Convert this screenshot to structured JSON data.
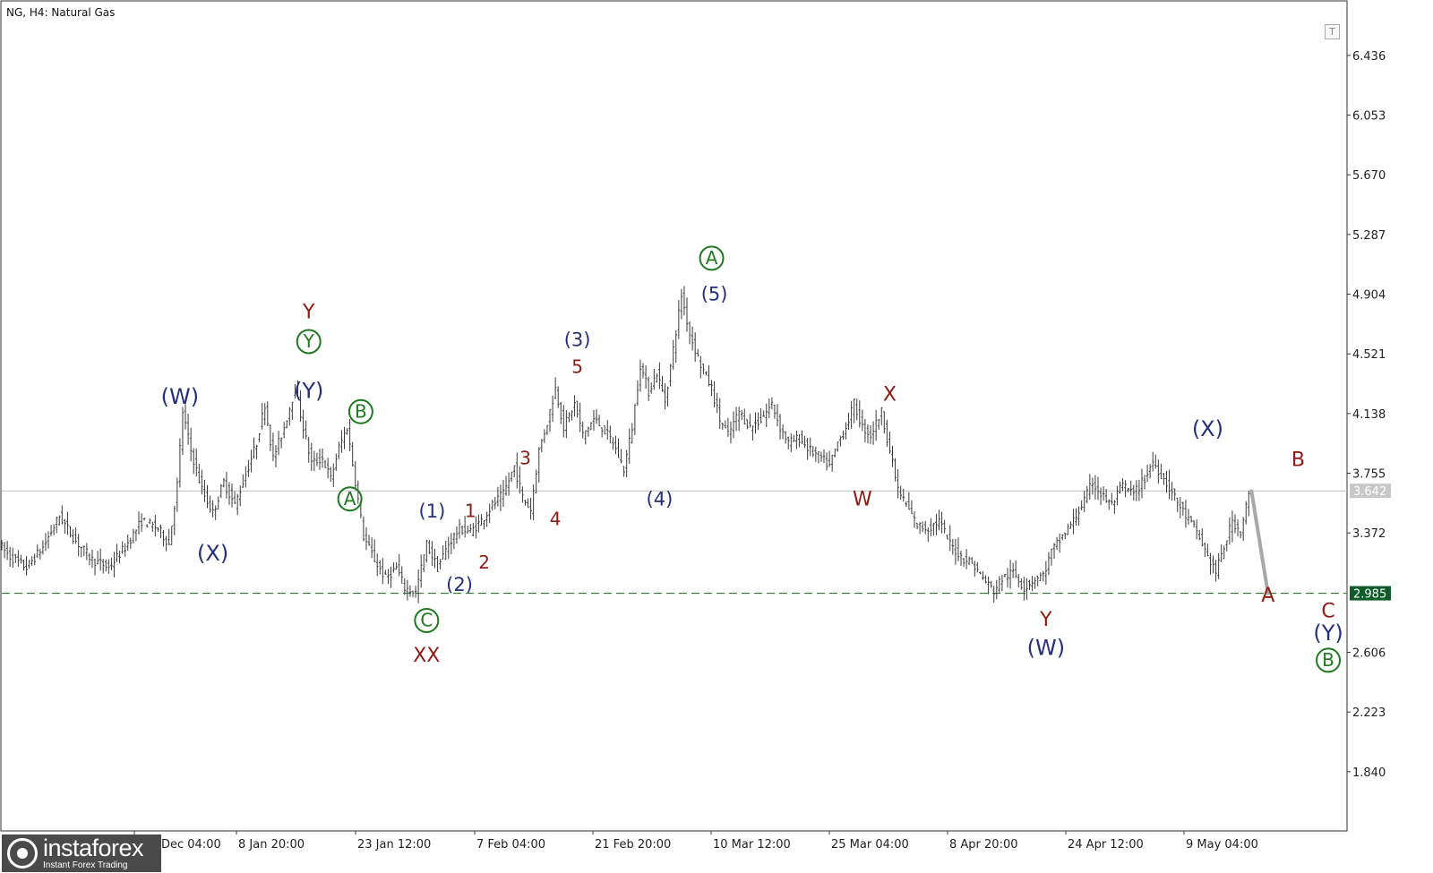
{
  "header": {
    "title": "NG, H4:  Natural Gas"
  },
  "toolbar": {
    "button_label": "T"
  },
  "logo": {
    "name": "instaforex",
    "tagline": "Instant Forex Trading"
  },
  "colors": {
    "bars": "#3a3a3a",
    "navy_labels": "#24307a",
    "red_labels": "#8e1b14",
    "green_labels": "#1f7a1f",
    "support_line": "#2e7d32",
    "current_price_line": "#bdbdbd",
    "price_box_green": "#0d5c2a",
    "price_box_grey": "#c8c8c8"
  },
  "chart_data": {
    "type": "ohlc",
    "symbol": "NG",
    "timeframe": "H4",
    "instrument": "Natural Gas",
    "ylim": [
      1.46,
      6.78
    ],
    "yticks": [
      "6.436",
      "6.053",
      "5.670",
      "5.287",
      "4.904",
      "4.521",
      "4.138",
      "3.755",
      "3.372",
      "2.606",
      "2.223",
      "1.840"
    ],
    "xticks": [
      "Dec 04:00",
      "8 Jan 20:00",
      "23 Jan 12:00",
      "7 Feb 04:00",
      "21 Feb 20:00",
      "10 Mar 12:00",
      "25 Mar 04:00",
      "8 Apr 20:00",
      "24 Apr 12:00",
      "9 May 04:00"
    ],
    "current_price": "3.642",
    "support_level": "2.985",
    "support_value": 2.985,
    "current_value": 3.642,
    "price_path": [
      [
        0,
        3.3
      ],
      [
        4,
        3.22
      ],
      [
        10,
        3.15
      ],
      [
        16,
        3.28
      ],
      [
        22,
        3.48
      ],
      [
        28,
        3.32
      ],
      [
        34,
        3.2
      ],
      [
        40,
        3.15
      ],
      [
        46,
        3.28
      ],
      [
        52,
        3.45
      ],
      [
        58,
        3.4
      ],
      [
        62,
        3.3
      ],
      [
        65,
        3.68
      ],
      [
        67,
        4.15
      ],
      [
        70,
        3.9
      ],
      [
        74,
        3.65
      ],
      [
        78,
        3.5
      ],
      [
        82,
        3.7
      ],
      [
        86,
        3.55
      ],
      [
        90,
        3.75
      ],
      [
        94,
        3.95
      ],
      [
        97,
        4.2
      ],
      [
        100,
        3.85
      ],
      [
        104,
        4.05
      ],
      [
        108,
        4.3
      ],
      [
        111,
        4.05
      ],
      [
        114,
        3.82
      ],
      [
        118,
        3.85
      ],
      [
        121,
        3.72
      ],
      [
        124,
        3.92
      ],
      [
        127,
        4.05
      ],
      [
        130,
        3.7
      ],
      [
        133,
        3.35
      ],
      [
        137,
        3.2
      ],
      [
        141,
        3.08
      ],
      [
        145,
        3.15
      ],
      [
        148,
        3.02
      ],
      [
        152,
        2.99
      ],
      [
        156,
        3.3
      ],
      [
        160,
        3.15
      ],
      [
        164,
        3.3
      ],
      [
        168,
        3.4
      ],
      [
        172,
        3.38
      ],
      [
        176,
        3.45
      ],
      [
        180,
        3.55
      ],
      [
        184,
        3.62
      ],
      [
        188,
        3.8
      ],
      [
        191,
        3.6
      ],
      [
        194,
        3.52
      ],
      [
        197,
        3.9
      ],
      [
        200,
        4.08
      ],
      [
        203,
        4.3
      ],
      [
        206,
        4.05
      ],
      [
        210,
        4.2
      ],
      [
        213,
        4.0
      ],
      [
        217,
        4.1
      ],
      [
        220,
        4.05
      ],
      [
        224,
        3.95
      ],
      [
        228,
        3.78
      ],
      [
        231,
        4.05
      ],
      [
        234,
        4.45
      ],
      [
        237,
        4.28
      ],
      [
        240,
        4.4
      ],
      [
        243,
        4.22
      ],
      [
        246,
        4.55
      ],
      [
        249,
        4.9
      ],
      [
        252,
        4.65
      ],
      [
        256,
        4.45
      ],
      [
        260,
        4.3
      ],
      [
        263,
        4.1
      ],
      [
        266,
        4.0
      ],
      [
        270,
        4.15
      ],
      [
        274,
        4.05
      ],
      [
        278,
        4.1
      ],
      [
        282,
        4.2
      ],
      [
        285,
        4.05
      ],
      [
        288,
        3.95
      ],
      [
        292,
        3.98
      ],
      [
        296,
        3.9
      ],
      [
        300,
        3.85
      ],
      [
        303,
        3.8
      ],
      [
        306,
        3.95
      ],
      [
        309,
        4.05
      ],
      [
        312,
        4.2
      ],
      [
        315,
        4.05
      ],
      [
        318,
        4.0
      ],
      [
        322,
        4.15
      ],
      [
        325,
        3.9
      ],
      [
        328,
        3.65
      ],
      [
        331,
        3.55
      ],
      [
        335,
        3.42
      ],
      [
        339,
        3.4
      ],
      [
        343,
        3.45
      ],
      [
        347,
        3.3
      ],
      [
        351,
        3.22
      ],
      [
        355,
        3.18
      ],
      [
        359,
        3.08
      ],
      [
        363,
        3.0
      ],
      [
        366,
        3.08
      ],
      [
        370,
        3.12
      ],
      [
        374,
        3.02
      ],
      [
        378,
        3.08
      ],
      [
        381,
        3.1
      ],
      [
        384,
        3.25
      ],
      [
        388,
        3.35
      ],
      [
        392,
        3.45
      ],
      [
        396,
        3.58
      ],
      [
        399,
        3.7
      ],
      [
        402,
        3.62
      ],
      [
        406,
        3.55
      ],
      [
        410,
        3.68
      ],
      [
        414,
        3.62
      ],
      [
        418,
        3.72
      ],
      [
        421,
        3.83
      ],
      [
        425,
        3.72
      ],
      [
        429,
        3.6
      ],
      [
        433,
        3.48
      ],
      [
        437,
        3.38
      ],
      [
        441,
        3.22
      ],
      [
        444,
        3.12
      ],
      [
        447,
        3.28
      ],
      [
        450,
        3.45
      ],
      [
        453,
        3.38
      ],
      [
        456,
        3.62
      ]
    ],
    "forecast_arrow": [
      [
        456,
        3.64
      ],
      [
        462,
        2.985
      ]
    ],
    "wave_labels": [
      {
        "text": "(W)",
        "x": 65,
        "y": 4.245,
        "color": "navy"
      },
      {
        "text": "(X)",
        "x": 77,
        "y": 3.24,
        "color": "navy"
      },
      {
        "text": "Y",
        "x": 112,
        "y": 4.79,
        "color": "red"
      },
      {
        "text": "Y",
        "x": 112,
        "y": 4.6,
        "color": "green",
        "circled": true
      },
      {
        "text": "(Y)",
        "x": 112,
        "y": 4.285,
        "color": "navy"
      },
      {
        "text": "B",
        "x": 131,
        "y": 4.15,
        "color": "green",
        "circled": true
      },
      {
        "text": "A",
        "x": 127,
        "y": 3.59,
        "color": "green",
        "circled": true
      },
      {
        "text": "C",
        "x": 155,
        "y": 2.81,
        "color": "green",
        "circled": true
      },
      {
        "text": "XX",
        "x": 155,
        "y": 2.585,
        "color": "red"
      },
      {
        "text": "(1)",
        "x": 157,
        "y": 3.51,
        "color": "navy"
      },
      {
        "text": "1",
        "x": 171,
        "y": 3.51,
        "color": "red"
      },
      {
        "text": "(2)",
        "x": 167,
        "y": 3.04,
        "color": "navy"
      },
      {
        "text": "2",
        "x": 176,
        "y": 3.18,
        "color": "red"
      },
      {
        "text": "3",
        "x": 191,
        "y": 3.85,
        "color": "red"
      },
      {
        "text": "4",
        "x": 202,
        "y": 3.46,
        "color": "red"
      },
      {
        "text": "(3)",
        "x": 210,
        "y": 4.61,
        "color": "navy"
      },
      {
        "text": "5",
        "x": 210,
        "y": 4.435,
        "color": "red"
      },
      {
        "text": "(4)",
        "x": 240,
        "y": 3.59,
        "color": "navy"
      },
      {
        "text": "(5)",
        "x": 260,
        "y": 4.905,
        "color": "navy"
      },
      {
        "text": "A",
        "x": 259,
        "y": 5.135,
        "color": "green",
        "circled": true
      },
      {
        "text": "X",
        "x": 324,
        "y": 4.26,
        "color": "red"
      },
      {
        "text": "W",
        "x": 314,
        "y": 3.59,
        "color": "red"
      },
      {
        "text": "Y",
        "x": 381,
        "y": 2.815,
        "color": "red"
      },
      {
        "text": "(W)",
        "x": 381,
        "y": 2.635,
        "color": "navy"
      },
      {
        "text": "(X)",
        "x": 440,
        "y": 4.04,
        "color": "navy"
      },
      {
        "text": "B",
        "x": 473,
        "y": 3.84,
        "color": "red"
      },
      {
        "text": "A",
        "x": 462,
        "y": 2.97,
        "color": "red"
      },
      {
        "text": "C",
        "x": 484,
        "y": 2.87,
        "color": "red"
      },
      {
        "text": "(Y)",
        "x": 484,
        "y": 2.73,
        "color": "navy"
      },
      {
        "text": "B",
        "x": 484,
        "y": 2.555,
        "color": "green",
        "circled": true
      }
    ]
  }
}
